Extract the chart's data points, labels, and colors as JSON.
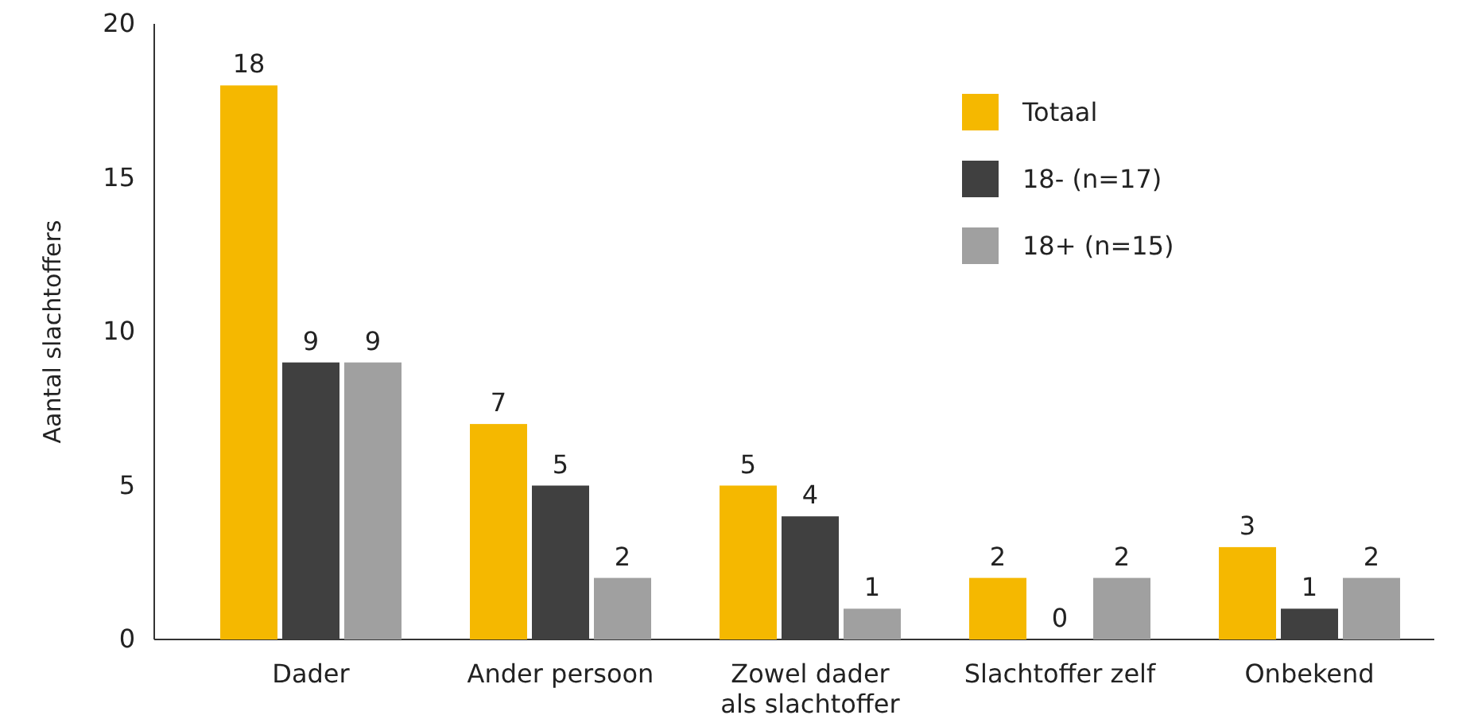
{
  "chart_data": {
    "type": "bar",
    "ylabel": "Aantal slachtoffers",
    "categories": [
      "Dader",
      "Ander persoon",
      "Zowel dader als slachtoffer",
      "Slachtoffer zelf",
      "Onbekend"
    ],
    "series": [
      {
        "name": "Totaal",
        "color": "#f5b800",
        "values": [
          18,
          7,
          5,
          2,
          3
        ]
      },
      {
        "name": "18- (n=17)",
        "color": "#404040",
        "values": [
          9,
          5,
          4,
          0,
          1
        ]
      },
      {
        "name": "18+ (n=15)",
        "color": "#a0a0a0",
        "values": [
          9,
          2,
          1,
          2,
          2
        ]
      }
    ],
    "ylim": [
      0,
      20
    ],
    "yticks": [
      0,
      5,
      10,
      15,
      20
    ],
    "data_labels": true,
    "legend": "top right"
  }
}
